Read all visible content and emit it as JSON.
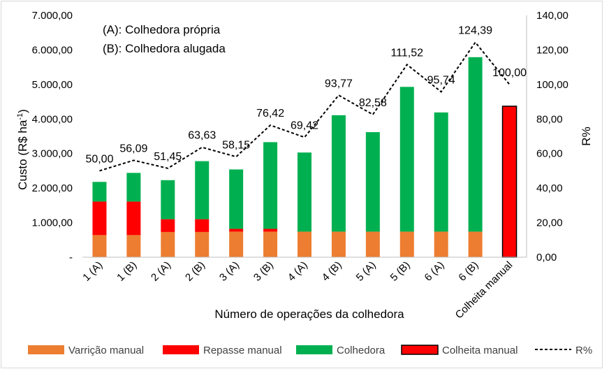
{
  "chart_data": {
    "type": "bar",
    "stacked": true,
    "categories": [
      "1 (A)",
      "1 (B)",
      "2 (A)",
      "2 (B)",
      "3 (A)",
      "3 (B)",
      "4 (A)",
      "4 (B)",
      "5 (A)",
      "5 (B)",
      "6 (A)",
      "6 (B)",
      "Colheita manual"
    ],
    "series": [
      {
        "name": "Varrição manual",
        "color": "#ED7D31",
        "values": [
          640,
          640,
          730,
          730,
          740,
          740,
          740,
          740,
          740,
          740,
          740,
          740,
          0
        ]
      },
      {
        "name": "Repasse manual",
        "color": "#FF0000",
        "values": [
          970,
          970,
          370,
          370,
          80,
          80,
          0,
          0,
          0,
          0,
          0,
          0,
          0
        ]
      },
      {
        "name": "Colhedora",
        "color": "#00B050",
        "values": [
          570,
          830,
          1130,
          1680,
          1720,
          2510,
          2290,
          3370,
          2880,
          4190,
          3450,
          5050,
          0
        ]
      },
      {
        "name": "Colheita manual",
        "color": "#FF0000",
        "values": [
          0,
          0,
          0,
          0,
          0,
          0,
          0,
          0,
          0,
          0,
          0,
          0,
          4370
        ]
      }
    ],
    "line": {
      "name": "R%",
      "values": [
        50.0,
        56.09,
        51.45,
        63.63,
        58.15,
        76.42,
        69.42,
        93.77,
        82.58,
        111.52,
        95.74,
        124.39,
        100.0
      ],
      "labels": [
        "50,00",
        "56,09",
        "51,45",
        "63,63",
        "58,15",
        "76,42",
        "69,42",
        "93,77",
        "82,58",
        "111,52",
        "95,74",
        "124,39",
        "100,00"
      ]
    },
    "y_left": {
      "label_main": "Custo (R$ ha",
      "label_sup": "-1",
      "label_end": ")",
      "ylim": [
        0,
        7000
      ],
      "ticks": [
        "-",
        "1.000,00",
        "2.000,00",
        "3.000,00",
        "4.000,00",
        "5.000,00",
        "6.000,00",
        "7.000,00"
      ]
    },
    "y_right": {
      "label": "R%",
      "ylim": [
        0,
        140
      ],
      "ticks": [
        "0,00",
        "20,00",
        "40,00",
        "60,00",
        "80,00",
        "100,00",
        "120,00",
        "140,00"
      ]
    },
    "xlabel": "Número de operações da colhedora",
    "annotations": [
      "(A): Colhedora própria",
      "(B): Colhedora alugada"
    ],
    "legend": [
      "Varrição manual",
      "Repasse manual",
      "Colhedora",
      "Colheita manual",
      "R%"
    ],
    "legend_position": "bottom"
  }
}
